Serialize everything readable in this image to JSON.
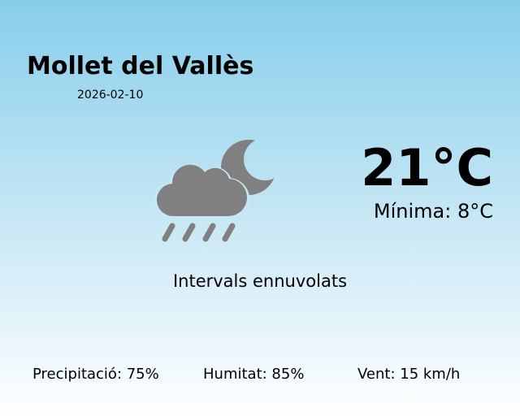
{
  "location": "Mollet del Vallès",
  "date": "2026-02-10",
  "temperature": "21°C",
  "minimum": "Mínima: 8°C",
  "condition": "Intervals ennuvolats",
  "icon": "night-partly-cloudy-rain-icon",
  "icon_color": "#808080",
  "stats": {
    "precipitation": "Precipitació: 75%",
    "humidity": "Humitat: 85%",
    "wind": "Vent: 15 km/h"
  }
}
